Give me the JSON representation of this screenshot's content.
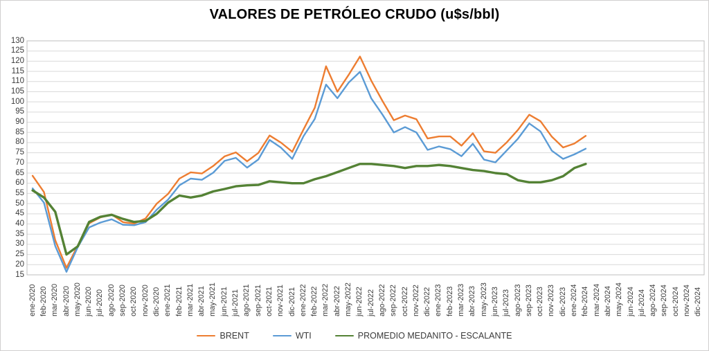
{
  "title": "VALORES DE PETRÓLEO CRUDO (u$s/bbl)",
  "legend": {
    "items": [
      {
        "label": "BRENT"
      },
      {
        "label": "WTI"
      },
      {
        "label": "PROMEDIO MEDANITO - ESCALANTE"
      }
    ]
  },
  "colors": {
    "brent": "#ED7D31",
    "wti": "#5B9BD5",
    "medanito": "#548235",
    "gridline": "#D9D9D9",
    "plot_border": "#BFBFBF",
    "axis_text": "#3A3A3A"
  },
  "chart_data": {
    "type": "line",
    "title": "VALORES DE PETRÓLEO CRUDO (u$s/bbl)",
    "xlabel": "",
    "ylabel": "",
    "ylim": [
      15,
      130
    ],
    "ytick_step": 5,
    "grid": true,
    "legend_position": "bottom",
    "categories": [
      "ene-2020",
      "feb-2020",
      "mar-2020",
      "abr-2020",
      "may-2020",
      "jun-2020",
      "jul-2020",
      "ago-2020",
      "sep-2020",
      "oct-2020",
      "nov-2020",
      "dic-2020",
      "ene-2021",
      "feb-2021",
      "mar-2021",
      "abr-2021",
      "may-2021",
      "jun-2021",
      "jul-2021",
      "ago-2021",
      "sep-2021",
      "oct-2021",
      "nov-2021",
      "dic-2021",
      "ene-2022",
      "feb-2022",
      "mar-2022",
      "abr-2022",
      "may-2022",
      "jun-2022",
      "jul-2022",
      "ago-2022",
      "sep-2022",
      "oct-2022",
      "nov-2022",
      "dic-2022",
      "ene-2023",
      "feb-2023",
      "mar-2023",
      "abr-2023",
      "may-2023",
      "jun-2023",
      "jul-2023",
      "ago-2023",
      "sep-2023",
      "oct-2023",
      "nov-2023",
      "dic-2023",
      "ene-2024",
      "feb-2024",
      "mar-2024",
      "abr-2024",
      "may-2024",
      "jun-2024",
      "jul-2024",
      "ago-2024",
      "sep-2024",
      "oct-2024",
      "nov-2024",
      "dic-2024"
    ],
    "series": [
      {
        "name": "BRENT",
        "color": "#ED7D31",
        "stroke_width": 2.4,
        "values": [
          63.7,
          55.7,
          32.0,
          18.4,
          29.4,
          40.3,
          43.2,
          44.7,
          40.9,
          40.2,
          42.7,
          50.0,
          54.8,
          62.3,
          65.4,
          64.8,
          68.5,
          73.2,
          75.2,
          70.8,
          74.9,
          83.5,
          80.0,
          75.5,
          86.5,
          97.1,
          117.5,
          105.0,
          113.3,
          122.3,
          110.5,
          100.4,
          91.0,
          93.3,
          91.5,
          82.0,
          83.0,
          83.0,
          78.5,
          84.6,
          75.7,
          75.0,
          80.1,
          86.2,
          93.7,
          90.5,
          82.9,
          77.6,
          79.5,
          83.3
        ]
      },
      {
        "name": "WTI",
        "color": "#5B9BD5",
        "stroke_width": 2.4,
        "values": [
          57.5,
          50.5,
          29.2,
          16.5,
          28.6,
          38.3,
          40.7,
          42.3,
          39.6,
          39.4,
          40.9,
          47.0,
          52.0,
          59.0,
          62.3,
          61.7,
          65.2,
          71.0,
          72.5,
          67.7,
          71.7,
          81.3,
          77.5,
          72.0,
          83.2,
          91.6,
          108.5,
          101.8,
          109.5,
          114.8,
          101.8,
          93.7,
          85.0,
          87.6,
          85.0,
          76.4,
          78.1,
          76.8,
          73.3,
          79.4,
          71.6,
          70.3,
          76.1,
          81.9,
          89.4,
          85.5,
          76.0,
          72.0,
          74.2,
          77.0
        ]
      },
      {
        "name": "PROMEDIO MEDANITO - ESCALANTE",
        "color": "#548235",
        "stroke_width": 3.4,
        "values": [
          56.5,
          53.0,
          46.0,
          25.0,
          29.0,
          41.0,
          43.5,
          44.5,
          42.5,
          41.0,
          41.5,
          45.0,
          50.5,
          54.0,
          53.0,
          54.0,
          56.0,
          57.2,
          58.5,
          59.0,
          59.2,
          61.0,
          60.5,
          60.0,
          60.0,
          62.0,
          63.5,
          65.5,
          67.5,
          69.5,
          69.5,
          69.0,
          68.5,
          67.5,
          68.5,
          68.5,
          69.0,
          68.5,
          67.5,
          66.5,
          66.0,
          65.0,
          64.5,
          61.5,
          60.5,
          60.5,
          61.5,
          63.5,
          67.5,
          69.5
        ]
      }
    ]
  }
}
